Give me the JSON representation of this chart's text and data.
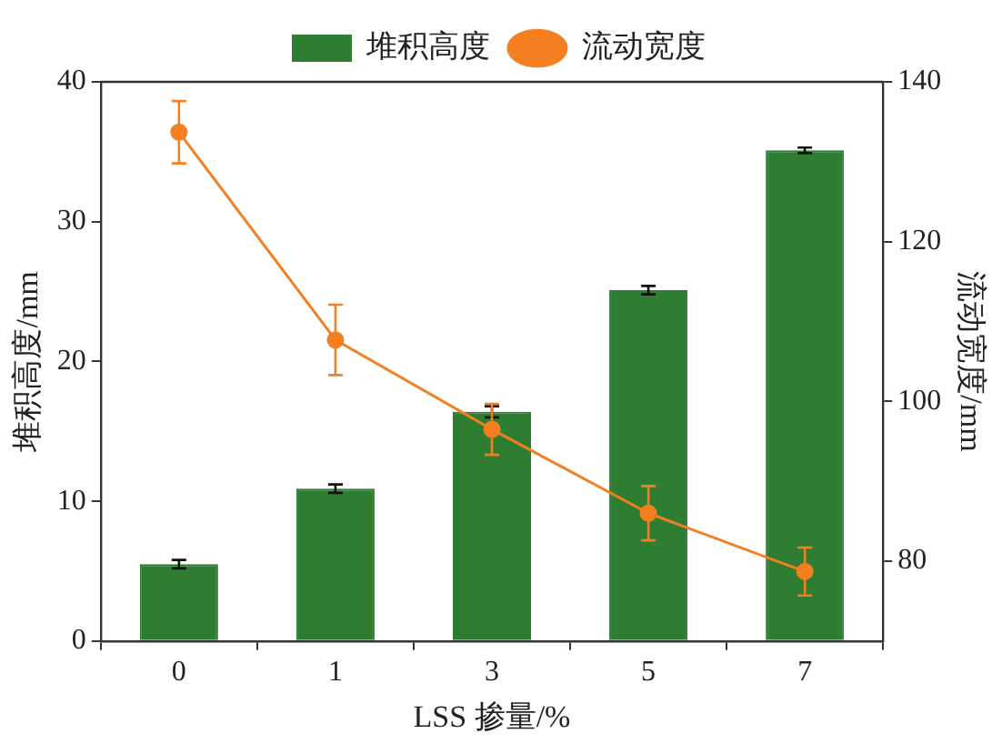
{
  "chart_data": {
    "type": "bar",
    "xlabel": "LSS 掺量/%",
    "ylabel": "堆积高度/mm",
    "y2label": "流动宽度/mm",
    "categories": [
      "0",
      "1",
      "3",
      "5",
      "7"
    ],
    "series": [
      {
        "name": "堆积高度",
        "color": "#2e7d32",
        "values": [
          5.5,
          10.9,
          16.4,
          25.1,
          35.1
        ],
        "errors": [
          0.3,
          0.3,
          0.4,
          0.3,
          0.2
        ]
      },
      {
        "name": "流动宽度",
        "type": "line",
        "axis": "y2",
        "color": "#f47f20",
        "values": [
          133.7,
          107.7,
          96.5,
          86.0,
          78.7
        ],
        "errors": [
          3.9,
          4.4,
          3.2,
          3.4,
          3.0
        ]
      }
    ],
    "ylim": [
      0,
      40
    ],
    "yticks": [
      0,
      10,
      20,
      30,
      40
    ],
    "y2lim": [
      70,
      140
    ],
    "y2ticks": [
      80,
      100,
      120,
      140
    ],
    "grid": false,
    "legend": "top",
    "marker": "circle",
    "line_style": "solid"
  }
}
